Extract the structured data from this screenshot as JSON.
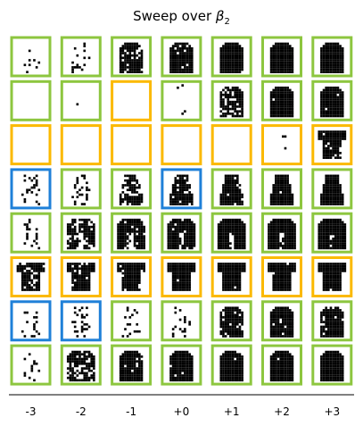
{
  "chart_data": {
    "type": "image-grid",
    "title": {
      "prefix": "Sweep over ",
      "symbol": "β",
      "subscript": "2"
    },
    "x_tick_labels": [
      "-3",
      "-2",
      "-1",
      "+0",
      "+1",
      "+2",
      "+3"
    ],
    "border_colors": {
      "green": "#8dc63f",
      "yellow": "#fbb900",
      "blue": "#1f80d8"
    },
    "rows": [
      {
        "borders": [
          "green",
          "green",
          "green",
          "green",
          "green",
          "green",
          "green"
        ],
        "fill": [
          0.12,
          0.18,
          0.45,
          0.55,
          0.65,
          0.7,
          0.7
        ],
        "shape": [
          "sparse",
          "sparse",
          "bell",
          "bell",
          "bell",
          "bell",
          "bell"
        ]
      },
      {
        "borders": [
          "green",
          "green",
          "yellow",
          "green",
          "green",
          "green",
          "green"
        ],
        "fill": [
          0.02,
          0.03,
          0.04,
          0.08,
          0.35,
          0.6,
          0.65
        ],
        "shape": [
          "dots",
          "dots",
          "dots",
          "dots",
          "bell",
          "bell",
          "bell"
        ]
      },
      {
        "borders": [
          "yellow",
          "yellow",
          "yellow",
          "yellow",
          "yellow",
          "yellow",
          "yellow"
        ],
        "fill": [
          0.0,
          0.0,
          0.0,
          0.0,
          0.01,
          0.05,
          0.55
        ],
        "shape": [
          "empty",
          "empty",
          "empty",
          "empty",
          "dots",
          "dots",
          "shirt"
        ]
      },
      {
        "borders": [
          "blue",
          "green",
          "green",
          "blue",
          "green",
          "green",
          "green"
        ],
        "fill": [
          0.18,
          0.22,
          0.25,
          0.45,
          0.6,
          0.65,
          0.65
        ],
        "shape": [
          "sparse",
          "sparse",
          "dress",
          "dress",
          "dress",
          "dress",
          "dress"
        ]
      },
      {
        "borders": [
          "green",
          "green",
          "green",
          "green",
          "green",
          "green",
          "green"
        ],
        "fill": [
          0.2,
          0.35,
          0.55,
          0.62,
          0.66,
          0.68,
          0.7
        ],
        "shape": [
          "sparse",
          "coat",
          "coat",
          "coat",
          "coat",
          "coat",
          "coat"
        ]
      },
      {
        "borders": [
          "yellow",
          "yellow",
          "yellow",
          "yellow",
          "yellow",
          "yellow",
          "yellow"
        ],
        "fill": [
          0.4,
          0.55,
          0.6,
          0.62,
          0.64,
          0.65,
          0.66
        ],
        "shape": [
          "shirt",
          "shirt",
          "shirt",
          "shirt",
          "shirt",
          "shirt",
          "shirt"
        ]
      },
      {
        "borders": [
          "blue",
          "blue",
          "green",
          "green",
          "green",
          "green",
          "green"
        ],
        "fill": [
          0.15,
          0.22,
          0.12,
          0.15,
          0.5,
          0.55,
          0.58
        ],
        "shape": [
          "sparse",
          "sparse",
          "sparse",
          "sparse",
          "bell",
          "bell",
          "bell"
        ]
      },
      {
        "borders": [
          "green",
          "green",
          "green",
          "green",
          "green",
          "green",
          "green"
        ],
        "fill": [
          0.1,
          0.25,
          0.55,
          0.62,
          0.65,
          0.66,
          0.66
        ],
        "shape": [
          "sparse",
          "coat",
          "bell",
          "bell",
          "bell",
          "bell",
          "bell"
        ]
      }
    ]
  }
}
